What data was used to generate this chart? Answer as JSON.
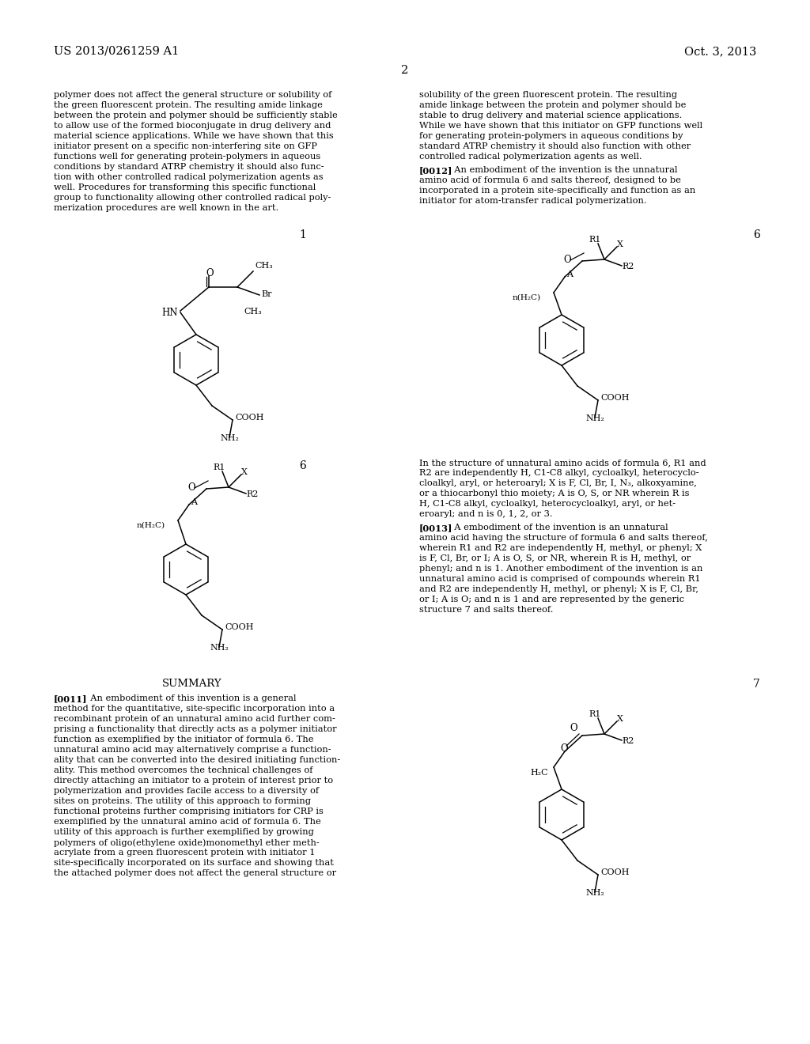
{
  "bg_color": "#ffffff",
  "text_color": "#000000",
  "header_left": "US 2013/0261259 A1",
  "header_right": "Oct. 3, 2013",
  "page_number": "2",
  "left_col_text": [
    "polymer does not affect the general structure or solubility of",
    "the green fluorescent protein. The resulting amide linkage",
    "between the protein and polymer should be sufficiently stable",
    "to allow use of the formed bioconjugate in drug delivery and",
    "material science applications. While we have shown that this",
    "initiator present on a specific non-interfering site on GFP",
    "functions well for generating protein-polymers in aqueous",
    "conditions by standard ATRP chemistry it should also func-",
    "tion with other controlled radical polymerization agents as",
    "well. Procedures for transforming this specific functional",
    "group to functionality allowing other controlled radical poly-",
    "merization procedures are well known in the art."
  ],
  "right_col_text": [
    "solubility of the green fluorescent protein. The resulting",
    "amide linkage between the protein and polymer should be",
    "stable to drug delivery and material science applications.",
    "While we have shown that this initiator on GFP functions well",
    "for generating protein-polymers in aqueous conditions by",
    "standard ATRP chemistry it should also function with other",
    "controlled radical polymerization agents as well."
  ],
  "right_col_para2_lines": [
    "In the structure of unnatural amino acids of formula 6, R1 and",
    "R2 are independently H, C1-C8 alkyl, cycloalkyl, heterocyclo-",
    "cloalkyl, aryl, or heteroaryl; X is F, Cl, Br, I, N₃, alkoxyamine,",
    "or a thiocarbonyl thio moiety; A is O, S, or NR wherein R is",
    "H, C1-C8 alkyl, cycloalkyl, heterocycloalkyl, aryl, or het-",
    "eroaryl; and n is 0, 1, 2, or 3."
  ],
  "right_col_para3_lines": [
    "[0013]   A embodiment of the invention is an unnatural",
    "amino acid having the structure of formula 6 and salts thereof,",
    "wherein R1 and R2 are independently H, methyl, or phenyl; X",
    "is F, Cl, Br, or I; A is O, S, or NR, wherein R is H, methyl, or",
    "phenyl; and n is 1. Another embodiment of the invention is an",
    "unnatural amino acid is comprised of compounds wherein R1",
    "and R2 are independently H, methyl, or phenyl; X is F, Cl, Br,",
    "or I; A is O; and n is 1 and are represented by the generic",
    "structure 7 and salts thereof."
  ],
  "summary_header": "SUMMARY",
  "summary_para": [
    "[0011]   An embodiment of this invention is a general",
    "method for the quantitative, site-specific incorporation into a",
    "recombinant protein of an unnatural amino acid further com-",
    "prising a functionality that directly acts as a polymer initiator",
    "function as exemplified by the initiator of formula 6. The",
    "unnatural amino acid may alternatively comprise a function-",
    "ality that can be converted into the desired initiating function-",
    "ality. This method overcomes the technical challenges of",
    "directly attaching an initiator to a protein of interest prior to",
    "polymerization and provides facile access to a diversity of",
    "sites on proteins. The utility of this approach to forming",
    "functional proteins further comprising initiators for CRP is",
    "exemplified by the unnatural amino acid of formula 6. The",
    "utility of this approach is further exemplified by growing",
    "polymers of oligo(ethylene oxide)monomethyl ether meth-",
    "acrylate from a green fluorescent protein with initiator 1",
    "site-specifically incorporated on its surface and showing that",
    "the attached polymer does not affect the general structure or"
  ],
  "right_para0012": "[0012]   An embodiment of the invention is the unnatural amino acid of formula 6 and salts thereof, designed to be incorporated in a protein site-specifically and function as an initiator for atom-transfer radical polymerization."
}
